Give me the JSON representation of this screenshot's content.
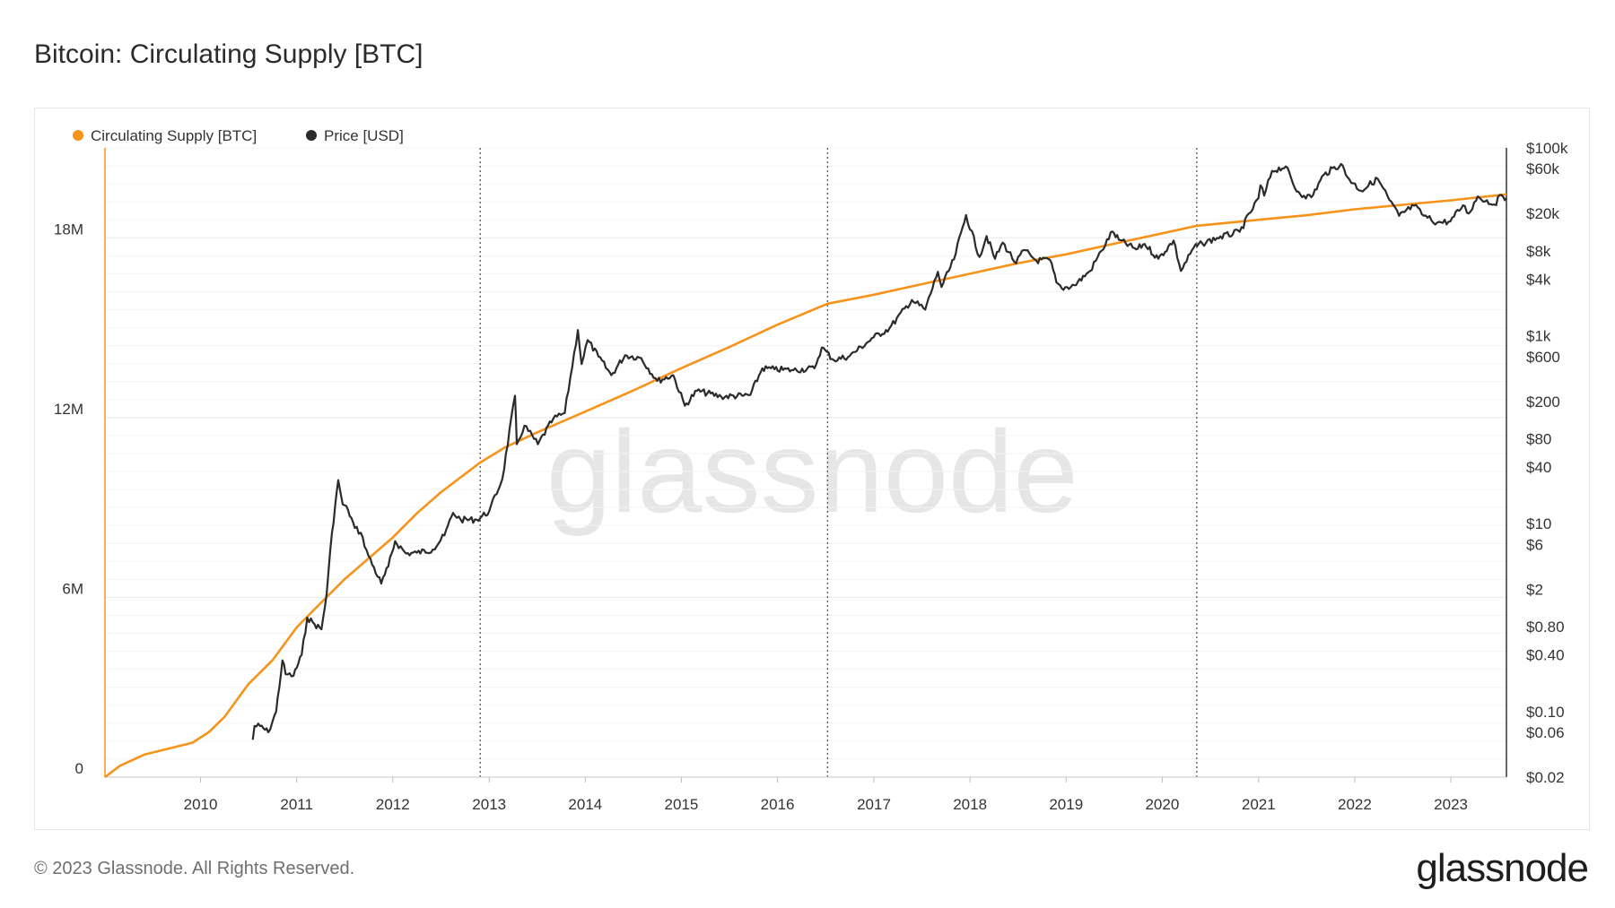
{
  "header": {
    "title": "Bitcoin: Circulating Supply [BTC]"
  },
  "footer": {
    "copyright": "© 2023 Glassnode. All Rights Reserved.",
    "logo": "glassnode"
  },
  "watermark": "glassnode",
  "colors": {
    "supply": "#f7931a",
    "price": "#2b2b2b",
    "halving_line": "#555555",
    "grid": "#ececec"
  },
  "chart_data": {
    "type": "line",
    "title": "Bitcoin: Circulating Supply [BTC]",
    "legend_position": "top-left",
    "grid": true,
    "x_axis": {
      "type": "date",
      "range": [
        "2009-01-03",
        "2023-07-31"
      ],
      "tick_labels": [
        "2010",
        "2011",
        "2012",
        "2013",
        "2014",
        "2015",
        "2016",
        "2017",
        "2018",
        "2019",
        "2020",
        "2021",
        "2022",
        "2023"
      ],
      "tick_dates": [
        "2010-01-01",
        "2011-01-01",
        "2012-01-01",
        "2013-01-01",
        "2014-01-01",
        "2015-01-01",
        "2016-01-01",
        "2017-01-01",
        "2018-01-01",
        "2019-01-01",
        "2020-01-01",
        "2021-01-01",
        "2022-01-01",
        "2023-01-01"
      ]
    },
    "y_axis_left": {
      "range": [
        0,
        21000000
      ],
      "tick_values": [
        0,
        6000000,
        12000000,
        18000000
      ],
      "tick_labels": [
        "0",
        "6M",
        "12M",
        "18M"
      ]
    },
    "y_axis_right": {
      "scale": "log",
      "range": [
        0.02,
        100000
      ],
      "tick_values": [
        100000,
        60000,
        20000,
        8000,
        4000,
        1000,
        600,
        200,
        80,
        40,
        10,
        6,
        2,
        0.8,
        0.4,
        0.1,
        0.06,
        0.02
      ],
      "tick_labels": [
        "$100k",
        "$60k",
        "$20k",
        "$8k",
        "$4k",
        "$1k",
        "$600",
        "$200",
        "$80",
        "$40",
        "$10",
        "$6",
        "$2",
        "$0.80",
        "$0.40",
        "$0.10",
        "$0.06",
        "$0.02"
      ]
    },
    "halving_dates": [
      "2012-11-28",
      "2016-07-09",
      "2020-05-11"
    ],
    "series": [
      {
        "name": "Circulating Supply [BTC]",
        "axis": "left",
        "points": [
          [
            "2009-01-03",
            0
          ],
          [
            "2009-03-01",
            380000
          ],
          [
            "2009-06-01",
            750000
          ],
          [
            "2009-09-01",
            950000
          ],
          [
            "2009-12-01",
            1150000
          ],
          [
            "2010-02-01",
            1500000
          ],
          [
            "2010-04-01",
            2000000
          ],
          [
            "2010-07-01",
            3100000
          ],
          [
            "2010-10-01",
            3900000
          ],
          [
            "2011-01-01",
            5000000
          ],
          [
            "2011-04-01",
            5800000
          ],
          [
            "2011-07-01",
            6600000
          ],
          [
            "2011-10-01",
            7300000
          ],
          [
            "2012-01-01",
            8000000
          ],
          [
            "2012-04-01",
            8800000
          ],
          [
            "2012-07-01",
            9500000
          ],
          [
            "2012-11-28",
            10500000
          ],
          [
            "2013-03-01",
            11000000
          ],
          [
            "2013-07-01",
            11500000
          ],
          [
            "2014-01-01",
            12200000
          ],
          [
            "2014-07-01",
            12900000
          ],
          [
            "2015-01-01",
            13650000
          ],
          [
            "2015-07-01",
            14350000
          ],
          [
            "2016-01-01",
            15100000
          ],
          [
            "2016-07-09",
            15800000
          ],
          [
            "2017-01-01",
            16100000
          ],
          [
            "2017-07-01",
            16450000
          ],
          [
            "2018-01-01",
            16800000
          ],
          [
            "2018-07-01",
            17150000
          ],
          [
            "2019-01-01",
            17450000
          ],
          [
            "2019-07-01",
            17800000
          ],
          [
            "2020-01-01",
            18150000
          ],
          [
            "2020-05-11",
            18400000
          ],
          [
            "2021-01-01",
            18600000
          ],
          [
            "2021-07-01",
            18750000
          ],
          [
            "2022-01-01",
            18950000
          ],
          [
            "2022-07-01",
            19100000
          ],
          [
            "2023-01-01",
            19250000
          ],
          [
            "2023-07-31",
            19450000
          ]
        ]
      },
      {
        "name": "Price [USD]",
        "axis": "right",
        "points": [
          [
            "2010-07-18",
            0.05
          ],
          [
            "2010-07-25",
            0.07
          ],
          [
            "2010-08-15",
            0.07
          ],
          [
            "2010-09-15",
            0.06
          ],
          [
            "2010-10-15",
            0.1
          ],
          [
            "2010-11-08",
            0.35
          ],
          [
            "2010-11-20",
            0.25
          ],
          [
            "2010-12-20",
            0.24
          ],
          [
            "2011-01-20",
            0.4
          ],
          [
            "2011-02-10",
            1.0
          ],
          [
            "2011-03-10",
            0.85
          ],
          [
            "2011-04-05",
            0.75
          ],
          [
            "2011-04-25",
            1.8
          ],
          [
            "2011-05-15",
            8.0
          ],
          [
            "2011-06-08",
            29.0
          ],
          [
            "2011-06-25",
            16.0
          ],
          [
            "2011-07-15",
            14.0
          ],
          [
            "2011-08-10",
            9.0
          ],
          [
            "2011-09-01",
            8.0
          ],
          [
            "2011-10-01",
            4.5
          ],
          [
            "2011-11-18",
            2.3
          ],
          [
            "2011-12-15",
            3.5
          ],
          [
            "2012-01-10",
            6.5
          ],
          [
            "2012-02-20",
            4.8
          ],
          [
            "2012-04-01",
            4.9
          ],
          [
            "2012-06-01",
            5.3
          ],
          [
            "2012-07-15",
            7.5
          ],
          [
            "2012-08-17",
            13.0
          ],
          [
            "2012-09-15",
            11.0
          ],
          [
            "2012-11-15",
            11.0
          ],
          [
            "2013-01-01",
            13.5
          ],
          [
            "2013-02-20",
            30.0
          ],
          [
            "2013-04-09",
            230.0
          ],
          [
            "2013-04-16",
            70.0
          ],
          [
            "2013-05-15",
            110.0
          ],
          [
            "2013-07-05",
            70.0
          ],
          [
            "2013-09-01",
            130.0
          ],
          [
            "2013-10-15",
            150.0
          ],
          [
            "2013-12-04",
            1150.0
          ],
          [
            "2013-12-18",
            500.0
          ],
          [
            "2014-01-10",
            900.0
          ],
          [
            "2014-02-20",
            600.0
          ],
          [
            "2014-04-10",
            380.0
          ],
          [
            "2014-06-01",
            620.0
          ],
          [
            "2014-08-01",
            580.0
          ],
          [
            "2014-10-01",
            330.0
          ],
          [
            "2014-12-01",
            380.0
          ],
          [
            "2015-01-14",
            180.0
          ],
          [
            "2015-03-01",
            260.0
          ],
          [
            "2015-06-01",
            225.0
          ],
          [
            "2015-08-20",
            230.0
          ],
          [
            "2015-09-20",
            235.0
          ],
          [
            "2015-11-04",
            450.0
          ],
          [
            "2015-12-20",
            440.0
          ],
          [
            "2016-03-01",
            430.0
          ],
          [
            "2016-05-20",
            450.0
          ],
          [
            "2016-06-17",
            750.0
          ],
          [
            "2016-08-02",
            550.0
          ],
          [
            "2016-10-01",
            610.0
          ],
          [
            "2016-12-31",
            960.0
          ],
          [
            "2017-03-01",
            1200.0
          ],
          [
            "2017-05-25",
            2400.0
          ],
          [
            "2017-07-15",
            1900.0
          ],
          [
            "2017-09-01",
            4800.0
          ],
          [
            "2017-09-15",
            3300.0
          ],
          [
            "2017-11-01",
            6500.0
          ],
          [
            "2017-12-17",
            19300.0
          ],
          [
            "2018-02-06",
            6900.0
          ],
          [
            "2018-03-05",
            11500.0
          ],
          [
            "2018-04-06",
            6600.0
          ],
          [
            "2018-05-05",
            9800.0
          ],
          [
            "2018-06-25",
            5900.0
          ],
          [
            "2018-07-25",
            8200.0
          ],
          [
            "2018-09-10",
            6300.0
          ],
          [
            "2018-11-01",
            6400.0
          ],
          [
            "2018-11-25",
            3700.0
          ],
          [
            "2018-12-15",
            3200.0
          ],
          [
            "2019-02-01",
            3450.0
          ],
          [
            "2019-04-02",
            4900.0
          ],
          [
            "2019-05-15",
            8000.0
          ],
          [
            "2019-06-26",
            12900.0
          ],
          [
            "2019-07-20",
            10500.0
          ],
          [
            "2019-09-24",
            8300.0
          ],
          [
            "2019-10-26",
            9500.0
          ],
          [
            "2019-12-17",
            6600.0
          ],
          [
            "2020-02-13",
            10300.0
          ],
          [
            "2020-03-12",
            4900.0
          ],
          [
            "2020-04-30",
            8700.0
          ],
          [
            "2020-06-01",
            9600.0
          ],
          [
            "2020-07-27",
            11000.0
          ],
          [
            "2020-10-21",
            12800.0
          ],
          [
            "2020-12-31",
            29000.0
          ],
          [
            "2021-01-08",
            40000.0
          ],
          [
            "2021-01-22",
            31000.0
          ],
          [
            "2021-02-21",
            57000.0
          ],
          [
            "2021-04-14",
            63500.0
          ],
          [
            "2021-05-19",
            37000.0
          ],
          [
            "2021-06-22",
            31000.0
          ],
          [
            "2021-07-20",
            29800.0
          ],
          [
            "2021-09-06",
            52000.0
          ],
          [
            "2021-11-10",
            67500.0
          ],
          [
            "2021-12-04",
            49000.0
          ],
          [
            "2022-01-24",
            35000.0
          ],
          [
            "2022-03-29",
            47000.0
          ],
          [
            "2022-05-12",
            28000.0
          ],
          [
            "2022-06-18",
            18900.0
          ],
          [
            "2022-08-14",
            24300.0
          ],
          [
            "2022-09-20",
            19000.0
          ],
          [
            "2022-11-10",
            16000.0
          ],
          [
            "2022-12-30",
            16500.0
          ],
          [
            "2023-02-16",
            24500.0
          ],
          [
            "2023-03-10",
            20000.0
          ],
          [
            "2023-04-13",
            30400.0
          ],
          [
            "2023-06-15",
            25000.0
          ],
          [
            "2023-07-13",
            31400.0
          ],
          [
            "2023-07-31",
            29200.0
          ]
        ]
      }
    ]
  }
}
